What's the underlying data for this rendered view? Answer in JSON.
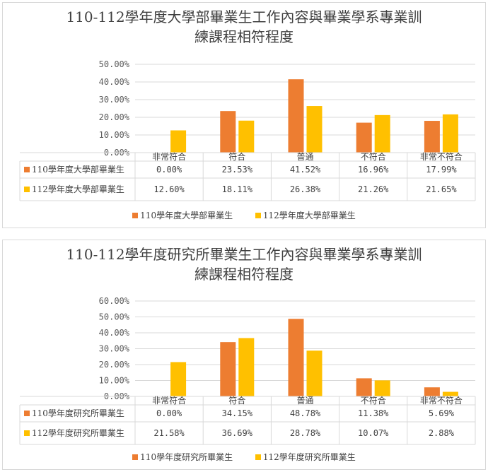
{
  "colors": {
    "series_110": "#ED7D31",
    "series_112": "#FFC000",
    "grid": "#D9D9D9"
  },
  "chart_data": [
    {
      "type": "bar",
      "title": "110-112學年度大學部畢業生工作內容與畢業學系專業訓練課程相符程度",
      "title_lines": [
        "110-112學年度大學部畢業生工作內容與畢業學系專業訓",
        "練課程相符程度"
      ],
      "categories": [
        "非常符合",
        "符合",
        "普通",
        "不符合",
        "非常不符合"
      ],
      "series": [
        {
          "name": "110學年度大學部畢業生",
          "values": [
            0.0,
            23.53,
            41.52,
            16.96,
            17.99
          ],
          "labels": [
            "0.00%",
            "23.53%",
            "41.52%",
            "16.96%",
            "17.99%"
          ]
        },
        {
          "name": "112學年度大學部畢業生",
          "values": [
            12.6,
            18.11,
            26.38,
            21.26,
            21.65
          ],
          "labels": [
            "12.60%",
            "18.11%",
            "26.38%",
            "21.26%",
            "21.65%"
          ]
        }
      ],
      "yticks": [
        "0.00%",
        "10.00%",
        "20.00%",
        "30.00%",
        "40.00%",
        "50.00%"
      ],
      "ylim": [
        0,
        50
      ],
      "grid": true,
      "legend": "bottom",
      "data_table": true
    },
    {
      "type": "bar",
      "title": "110-112學年度研究所畢業生工作內容與畢業學系專業訓練課程相符程度",
      "title_lines": [
        "110-112學年度研究所畢業生工作內容與畢業學系專業訓",
        "練課程相符程度"
      ],
      "categories": [
        "非常符合",
        "符合",
        "普通",
        "不符合",
        "非常不符合"
      ],
      "series": [
        {
          "name": "110學年度研究所畢業生",
          "values": [
            0.0,
            34.15,
            48.78,
            11.38,
            5.69
          ],
          "labels": [
            "0.00%",
            "34.15%",
            "48.78%",
            "11.38%",
            "5.69%"
          ]
        },
        {
          "name": "112學年度研究所畢業生",
          "values": [
            21.58,
            36.69,
            28.78,
            10.07,
            2.88
          ],
          "labels": [
            "21.58%",
            "36.69%",
            "28.78%",
            "10.07%",
            "2.88%"
          ]
        }
      ],
      "yticks": [
        "0.00%",
        "10.00%",
        "20.00%",
        "30.00%",
        "40.00%",
        "50.00%",
        "60.00%"
      ],
      "ylim": [
        0,
        60
      ],
      "grid": true,
      "legend": "bottom",
      "data_table": true
    }
  ]
}
